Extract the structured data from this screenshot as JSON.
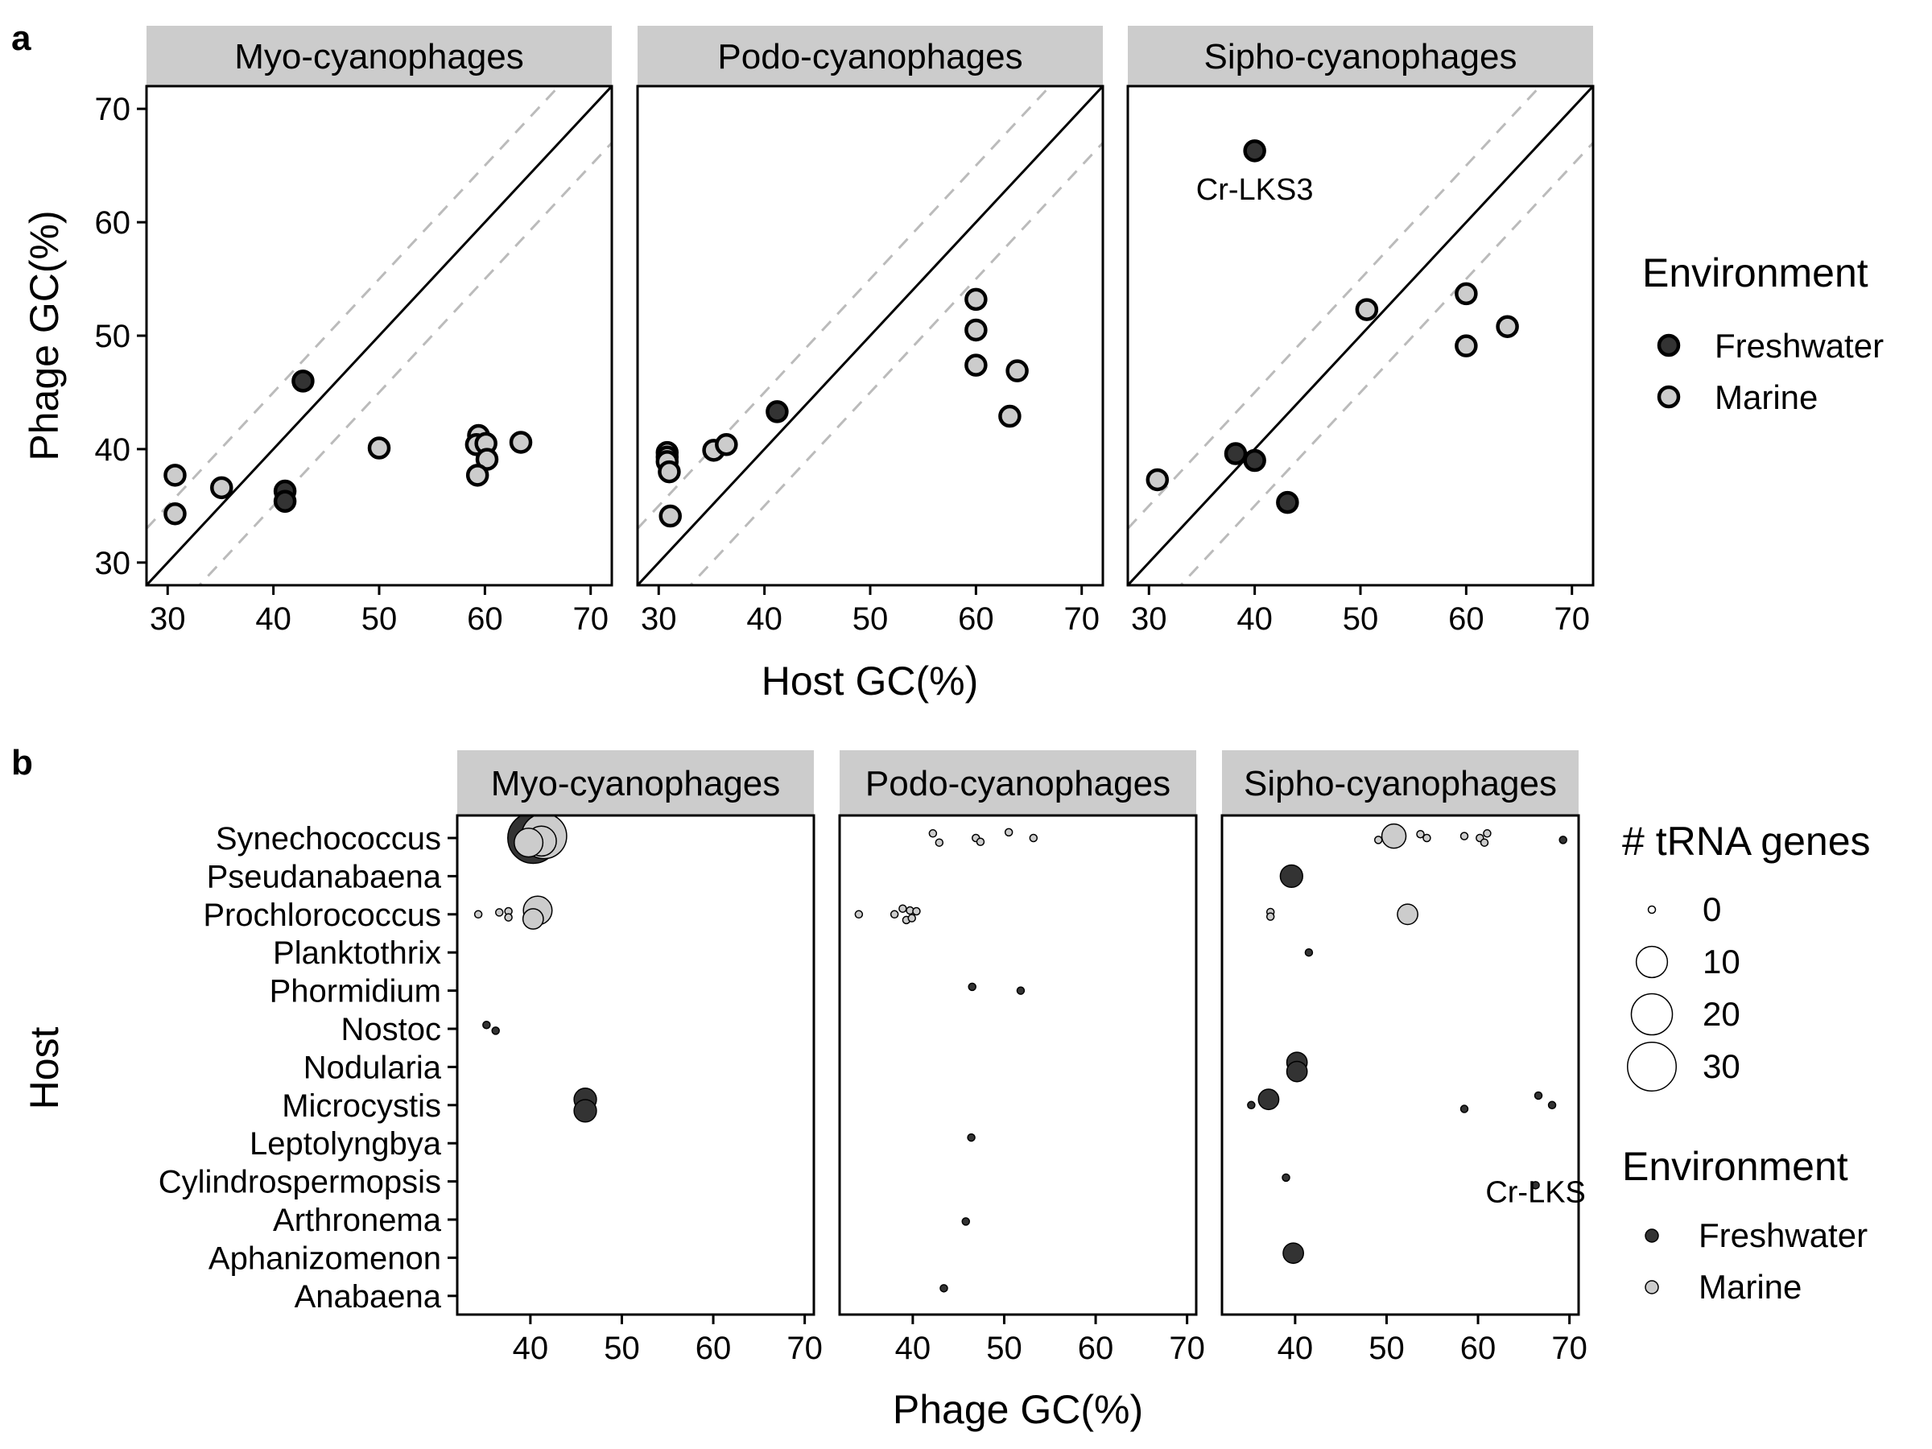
{
  "figure": {
    "panel_a_label": "a",
    "panel_b_label": "b"
  },
  "colors": {
    "freshwater": "#333333",
    "marine": "#cccccc",
    "strip": "#cccccc",
    "dashed": "#bbbbbb"
  },
  "chart_data": [
    {
      "type": "scatter",
      "panel": "a",
      "facets": [
        "Myo-cyanophages",
        "Podo-cyanophages",
        "Sipho-cyanophages"
      ],
      "xlabel": "Host GC(%)",
      "ylabel": "Phage GC(%)",
      "xlim": [
        28,
        72
      ],
      "ylim": [
        28,
        72
      ],
      "xticks": [
        30,
        40,
        50,
        60,
        70
      ],
      "yticks": [
        30,
        40,
        50,
        60,
        70
      ],
      "reference_lines": {
        "identity": true,
        "dashed_offsets": [
          5,
          -5
        ]
      },
      "legend": {
        "title": "Environment",
        "entries": [
          "Freshwater",
          "Marine"
        ],
        "placement": "right"
      },
      "annotation": {
        "facet": "Sipho-cyanophages",
        "text": "Cr-LKS3",
        "x": 40,
        "y": 63
      },
      "points": [
        {
          "facet": "Myo-cyanophages",
          "x": 30.7,
          "y": 37.7,
          "env": "Marine"
        },
        {
          "facet": "Myo-cyanophages",
          "x": 30.7,
          "y": 34.3,
          "env": "Marine"
        },
        {
          "facet": "Myo-cyanophages",
          "x": 35.1,
          "y": 36.6,
          "env": "Marine"
        },
        {
          "facet": "Myo-cyanophages",
          "x": 42.8,
          "y": 46.0,
          "env": "Freshwater"
        },
        {
          "facet": "Myo-cyanophages",
          "x": 41.1,
          "y": 36.3,
          "env": "Freshwater"
        },
        {
          "facet": "Myo-cyanophages",
          "x": 41.1,
          "y": 35.4,
          "env": "Freshwater"
        },
        {
          "facet": "Myo-cyanophages",
          "x": 50.0,
          "y": 40.1,
          "env": "Marine"
        },
        {
          "facet": "Myo-cyanophages",
          "x": 59.4,
          "y": 41.2,
          "env": "Marine"
        },
        {
          "facet": "Myo-cyanophages",
          "x": 59.2,
          "y": 40.4,
          "env": "Marine"
        },
        {
          "facet": "Myo-cyanophages",
          "x": 60.1,
          "y": 40.5,
          "env": "Marine"
        },
        {
          "facet": "Myo-cyanophages",
          "x": 60.2,
          "y": 39.1,
          "env": "Marine"
        },
        {
          "facet": "Myo-cyanophages",
          "x": 59.3,
          "y": 37.7,
          "env": "Marine"
        },
        {
          "facet": "Myo-cyanophages",
          "x": 63.4,
          "y": 40.6,
          "env": "Marine"
        },
        {
          "facet": "Podo-cyanophages",
          "x": 30.8,
          "y": 39.7,
          "env": "Marine"
        },
        {
          "facet": "Podo-cyanophages",
          "x": 30.8,
          "y": 39.3,
          "env": "Marine"
        },
        {
          "facet": "Podo-cyanophages",
          "x": 30.8,
          "y": 38.9,
          "env": "Marine"
        },
        {
          "facet": "Podo-cyanophages",
          "x": 31.0,
          "y": 38.0,
          "env": "Marine"
        },
        {
          "facet": "Podo-cyanophages",
          "x": 31.1,
          "y": 34.1,
          "env": "Marine"
        },
        {
          "facet": "Podo-cyanophages",
          "x": 35.2,
          "y": 39.9,
          "env": "Marine"
        },
        {
          "facet": "Podo-cyanophages",
          "x": 36.4,
          "y": 40.4,
          "env": "Marine"
        },
        {
          "facet": "Podo-cyanophages",
          "x": 41.2,
          "y": 43.3,
          "env": "Freshwater"
        },
        {
          "facet": "Podo-cyanophages",
          "x": 60.0,
          "y": 53.2,
          "env": "Marine"
        },
        {
          "facet": "Podo-cyanophages",
          "x": 60.0,
          "y": 50.5,
          "env": "Marine"
        },
        {
          "facet": "Podo-cyanophages",
          "x": 60.0,
          "y": 47.4,
          "env": "Marine"
        },
        {
          "facet": "Podo-cyanophages",
          "x": 63.9,
          "y": 46.9,
          "env": "Marine"
        },
        {
          "facet": "Podo-cyanophages",
          "x": 63.2,
          "y": 42.9,
          "env": "Marine"
        },
        {
          "facet": "Sipho-cyanophages",
          "x": 40.0,
          "y": 66.3,
          "env": "Freshwater"
        },
        {
          "facet": "Sipho-cyanophages",
          "x": 30.8,
          "y": 37.3,
          "env": "Marine"
        },
        {
          "facet": "Sipho-cyanophages",
          "x": 38.2,
          "y": 39.6,
          "env": "Freshwater"
        },
        {
          "facet": "Sipho-cyanophages",
          "x": 40.0,
          "y": 39.0,
          "env": "Freshwater"
        },
        {
          "facet": "Sipho-cyanophages",
          "x": 43.1,
          "y": 35.3,
          "env": "Freshwater"
        },
        {
          "facet": "Sipho-cyanophages",
          "x": 50.6,
          "y": 52.3,
          "env": "Marine"
        },
        {
          "facet": "Sipho-cyanophages",
          "x": 60.0,
          "y": 53.7,
          "env": "Marine"
        },
        {
          "facet": "Sipho-cyanophages",
          "x": 60.0,
          "y": 49.1,
          "env": "Marine"
        },
        {
          "facet": "Sipho-cyanophages",
          "x": 63.9,
          "y": 50.8,
          "env": "Marine"
        }
      ]
    },
    {
      "type": "scatter",
      "panel": "b",
      "facets": [
        "Myo-cyanophages",
        "Podo-cyanophages",
        "Sipho-cyanophages"
      ],
      "xlabel": "Phage GC(%)",
      "ylabel": "Host",
      "xlim": [
        32,
        71
      ],
      "xticks": [
        40,
        50,
        60,
        70
      ],
      "categories": [
        "Synechococcus",
        "Pseudanabaena",
        "Prochlorococcus",
        "Planktothrix",
        "Phormidium",
        "Nostoc",
        "Nodularia",
        "Microcystis",
        "Leptolyngbya",
        "Cylindrospermopsis",
        "Arthronema",
        "Aphanizomenon",
        "Anabaena"
      ],
      "legend": {
        "size_title": "# tRNA genes",
        "size_entries": [
          {
            "label": "0",
            "value": 0
          },
          {
            "label": "10",
            "value": 10
          },
          {
            "label": "20",
            "value": 20
          },
          {
            "label": "30",
            "value": 30
          }
        ],
        "env_title": "Environment",
        "env_entries": [
          "Freshwater",
          "Marine"
        ],
        "placement": "right"
      },
      "annotation": {
        "facet": "Sipho-cyanophages",
        "text": "Cr-LKS",
        "x": 66.3,
        "y": "Cylindrospermopsis"
      },
      "points": [
        {
          "facet": "Myo-cyanophages",
          "host": "Synechococcus",
          "x": 39.8,
          "y_offset": -0.12,
          "trna": 8,
          "env": "Marine"
        },
        {
          "facet": "Myo-cyanophages",
          "host": "Synechococcus",
          "x": 41.5,
          "y_offset": 0.05,
          "trna": 25,
          "env": "Marine"
        },
        {
          "facet": "Myo-cyanophages",
          "host": "Synechococcus",
          "x": 40.3,
          "y_offset": 0.0,
          "trna": 33,
          "env": "Freshwater"
        },
        {
          "facet": "Myo-cyanophages",
          "host": "Synechococcus",
          "x": 41.2,
          "y_offset": -0.08,
          "trna": 9,
          "env": "Marine"
        },
        {
          "facet": "Myo-cyanophages",
          "host": "Prochlorococcus",
          "x": 34.3,
          "y_offset": 0.0,
          "trna": 0,
          "env": "Marine"
        },
        {
          "facet": "Myo-cyanophages",
          "host": "Prochlorococcus",
          "x": 36.6,
          "y_offset": 0.05,
          "trna": 0,
          "env": "Marine"
        },
        {
          "facet": "Myo-cyanophages",
          "host": "Prochlorococcus",
          "x": 37.6,
          "y_offset": 0.08,
          "trna": 0,
          "env": "Marine"
        },
        {
          "facet": "Myo-cyanophages",
          "host": "Prochlorococcus",
          "x": 37.6,
          "y_offset": -0.08,
          "trna": 0,
          "env": "Marine"
        },
        {
          "facet": "Myo-cyanophages",
          "host": "Prochlorococcus",
          "x": 40.3,
          "y_offset": -0.12,
          "trna": 3,
          "env": "Marine"
        },
        {
          "facet": "Myo-cyanophages",
          "host": "Prochlorococcus",
          "x": 40.8,
          "y_offset": 0.1,
          "trna": 8,
          "env": "Marine"
        },
        {
          "facet": "Myo-cyanophages",
          "host": "Nostoc",
          "x": 35.2,
          "y_offset": 0.1,
          "trna": 0,
          "env": "Freshwater"
        },
        {
          "facet": "Myo-cyanophages",
          "host": "Nostoc",
          "x": 36.2,
          "y_offset": -0.05,
          "trna": 0,
          "env": "Freshwater"
        },
        {
          "facet": "Myo-cyanophages",
          "host": "Microcystis",
          "x": 46.0,
          "y_offset": 0.15,
          "trna": 4,
          "env": "Freshwater"
        },
        {
          "facet": "Myo-cyanophages",
          "host": "Microcystis",
          "x": 46.0,
          "y_offset": -0.15,
          "trna": 4,
          "env": "Freshwater"
        },
        {
          "facet": "Podo-cyanophages",
          "host": "Synechococcus",
          "x": 42.2,
          "y_offset": 0.12,
          "trna": 0,
          "env": "Marine"
        },
        {
          "facet": "Podo-cyanophages",
          "host": "Synechococcus",
          "x": 42.9,
          "y_offset": -0.12,
          "trna": 0,
          "env": "Marine"
        },
        {
          "facet": "Podo-cyanophages",
          "host": "Synechococcus",
          "x": 46.9,
          "y_offset": 0.0,
          "trna": 0,
          "env": "Marine"
        },
        {
          "facet": "Podo-cyanophages",
          "host": "Synechococcus",
          "x": 47.4,
          "y_offset": -0.1,
          "trna": 0,
          "env": "Marine"
        },
        {
          "facet": "Podo-cyanophages",
          "host": "Synechococcus",
          "x": 50.5,
          "y_offset": 0.15,
          "trna": 0,
          "env": "Marine"
        },
        {
          "facet": "Podo-cyanophages",
          "host": "Synechococcus",
          "x": 53.2,
          "y_offset": 0.0,
          "trna": 0,
          "env": "Marine"
        },
        {
          "facet": "Podo-cyanophages",
          "host": "Prochlorococcus",
          "x": 34.1,
          "y_offset": 0.0,
          "trna": 0,
          "env": "Marine"
        },
        {
          "facet": "Podo-cyanophages",
          "host": "Prochlorococcus",
          "x": 38.0,
          "y_offset": 0.0,
          "trna": 0,
          "env": "Marine"
        },
        {
          "facet": "Podo-cyanophages",
          "host": "Prochlorococcus",
          "x": 38.9,
          "y_offset": 0.15,
          "trna": 0,
          "env": "Marine"
        },
        {
          "facet": "Podo-cyanophages",
          "host": "Prochlorococcus",
          "x": 39.3,
          "y_offset": -0.15,
          "trna": 0,
          "env": "Marine"
        },
        {
          "facet": "Podo-cyanophages",
          "host": "Prochlorococcus",
          "x": 39.7,
          "y_offset": 0.1,
          "trna": 0,
          "env": "Marine"
        },
        {
          "facet": "Podo-cyanophages",
          "host": "Prochlorococcus",
          "x": 39.9,
          "y_offset": -0.1,
          "trna": 0,
          "env": "Marine"
        },
        {
          "facet": "Podo-cyanophages",
          "host": "Prochlorococcus",
          "x": 40.4,
          "y_offset": 0.08,
          "trna": 0,
          "env": "Marine"
        },
        {
          "facet": "Podo-cyanophages",
          "host": "Phormidium",
          "x": 46.5,
          "y_offset": 0.1,
          "trna": 0,
          "env": "Freshwater"
        },
        {
          "facet": "Podo-cyanophages",
          "host": "Phormidium",
          "x": 51.8,
          "y_offset": 0.0,
          "trna": 0,
          "env": "Freshwater"
        },
        {
          "facet": "Podo-cyanophages",
          "host": "Leptolyngbya",
          "x": 46.4,
          "y_offset": 0.15,
          "trna": 0,
          "env": "Freshwater"
        },
        {
          "facet": "Podo-cyanophages",
          "host": "Arthronema",
          "x": 45.8,
          "y_offset": -0.05,
          "trna": 0,
          "env": "Freshwater"
        },
        {
          "facet": "Podo-cyanophages",
          "host": "Anabaena",
          "x": 43.4,
          "y_offset": 0.2,
          "trna": 0,
          "env": "Freshwater"
        },
        {
          "facet": "Sipho-cyanophages",
          "host": "Synechococcus",
          "x": 49.1,
          "y_offset": -0.05,
          "trna": 0,
          "env": "Marine"
        },
        {
          "facet": "Sipho-cyanophages",
          "host": "Synechococcus",
          "x": 50.8,
          "y_offset": 0.05,
          "trna": 5,
          "env": "Marine"
        },
        {
          "facet": "Sipho-cyanophages",
          "host": "Synechococcus",
          "x": 53.7,
          "y_offset": 0.1,
          "trna": 0,
          "env": "Marine"
        },
        {
          "facet": "Sipho-cyanophages",
          "host": "Synechococcus",
          "x": 54.4,
          "y_offset": 0.0,
          "trna": 0,
          "env": "Marine"
        },
        {
          "facet": "Sipho-cyanophages",
          "host": "Synechococcus",
          "x": 58.5,
          "y_offset": 0.05,
          "trna": 0,
          "env": "Marine"
        },
        {
          "facet": "Sipho-cyanophages",
          "host": "Synechococcus",
          "x": 60.2,
          "y_offset": 0.0,
          "trna": 0,
          "env": "Marine"
        },
        {
          "facet": "Sipho-cyanophages",
          "host": "Synechococcus",
          "x": 60.7,
          "y_offset": -0.12,
          "trna": 0,
          "env": "Marine"
        },
        {
          "facet": "Sipho-cyanophages",
          "host": "Synechococcus",
          "x": 61.0,
          "y_offset": 0.12,
          "trna": 0,
          "env": "Marine"
        },
        {
          "facet": "Sipho-cyanophages",
          "host": "Synechococcus",
          "x": 69.3,
          "y_offset": -0.05,
          "trna": 0,
          "env": "Freshwater"
        },
        {
          "facet": "Sipho-cyanophages",
          "host": "Pseudanabaena",
          "x": 39.6,
          "y_offset": 0.0,
          "trna": 4,
          "env": "Freshwater"
        },
        {
          "facet": "Sipho-cyanophages",
          "host": "Prochlorococcus",
          "x": 37.3,
          "y_offset": 0.06,
          "trna": 0,
          "env": "Marine"
        },
        {
          "facet": "Sipho-cyanophages",
          "host": "Prochlorococcus",
          "x": 37.3,
          "y_offset": -0.06,
          "trna": 0,
          "env": "Marine"
        },
        {
          "facet": "Sipho-cyanophages",
          "host": "Prochlorococcus",
          "x": 52.3,
          "y_offset": 0.0,
          "trna": 3,
          "env": "Marine"
        },
        {
          "facet": "Sipho-cyanophages",
          "host": "Planktothrix",
          "x": 41.5,
          "y_offset": 0.0,
          "trna": 0,
          "env": "Freshwater"
        },
        {
          "facet": "Sipho-cyanophages",
          "host": "Nodularia",
          "x": 40.2,
          "y_offset": 0.12,
          "trna": 3,
          "env": "Freshwater"
        },
        {
          "facet": "Sipho-cyanophages",
          "host": "Nodularia",
          "x": 40.2,
          "y_offset": -0.12,
          "trna": 3,
          "env": "Freshwater"
        },
        {
          "facet": "Sipho-cyanophages",
          "host": "Microcystis",
          "x": 35.2,
          "y_offset": 0.0,
          "trna": 0,
          "env": "Freshwater"
        },
        {
          "facet": "Sipho-cyanophages",
          "host": "Microcystis",
          "x": 37.1,
          "y_offset": 0.15,
          "trna": 3,
          "env": "Freshwater"
        },
        {
          "facet": "Sipho-cyanophages",
          "host": "Microcystis",
          "x": 58.5,
          "y_offset": -0.1,
          "trna": 0,
          "env": "Freshwater"
        },
        {
          "facet": "Sipho-cyanophages",
          "host": "Microcystis",
          "x": 66.6,
          "y_offset": 0.25,
          "trna": 0,
          "env": "Freshwater"
        },
        {
          "facet": "Sipho-cyanophages",
          "host": "Microcystis",
          "x": 68.1,
          "y_offset": 0.0,
          "trna": 0,
          "env": "Freshwater"
        },
        {
          "facet": "Sipho-cyanophages",
          "host": "Cylindrospermopsis",
          "x": 39.0,
          "y_offset": 0.1,
          "trna": 0,
          "env": "Freshwater"
        },
        {
          "facet": "Sipho-cyanophages",
          "host": "Cylindrospermopsis",
          "x": 66.3,
          "y_offset": -0.1,
          "trna": 0,
          "env": "Freshwater"
        },
        {
          "facet": "Sipho-cyanophages",
          "host": "Aphanizomenon",
          "x": 39.8,
          "y_offset": 0.12,
          "trna": 3,
          "env": "Freshwater"
        }
      ]
    }
  ]
}
